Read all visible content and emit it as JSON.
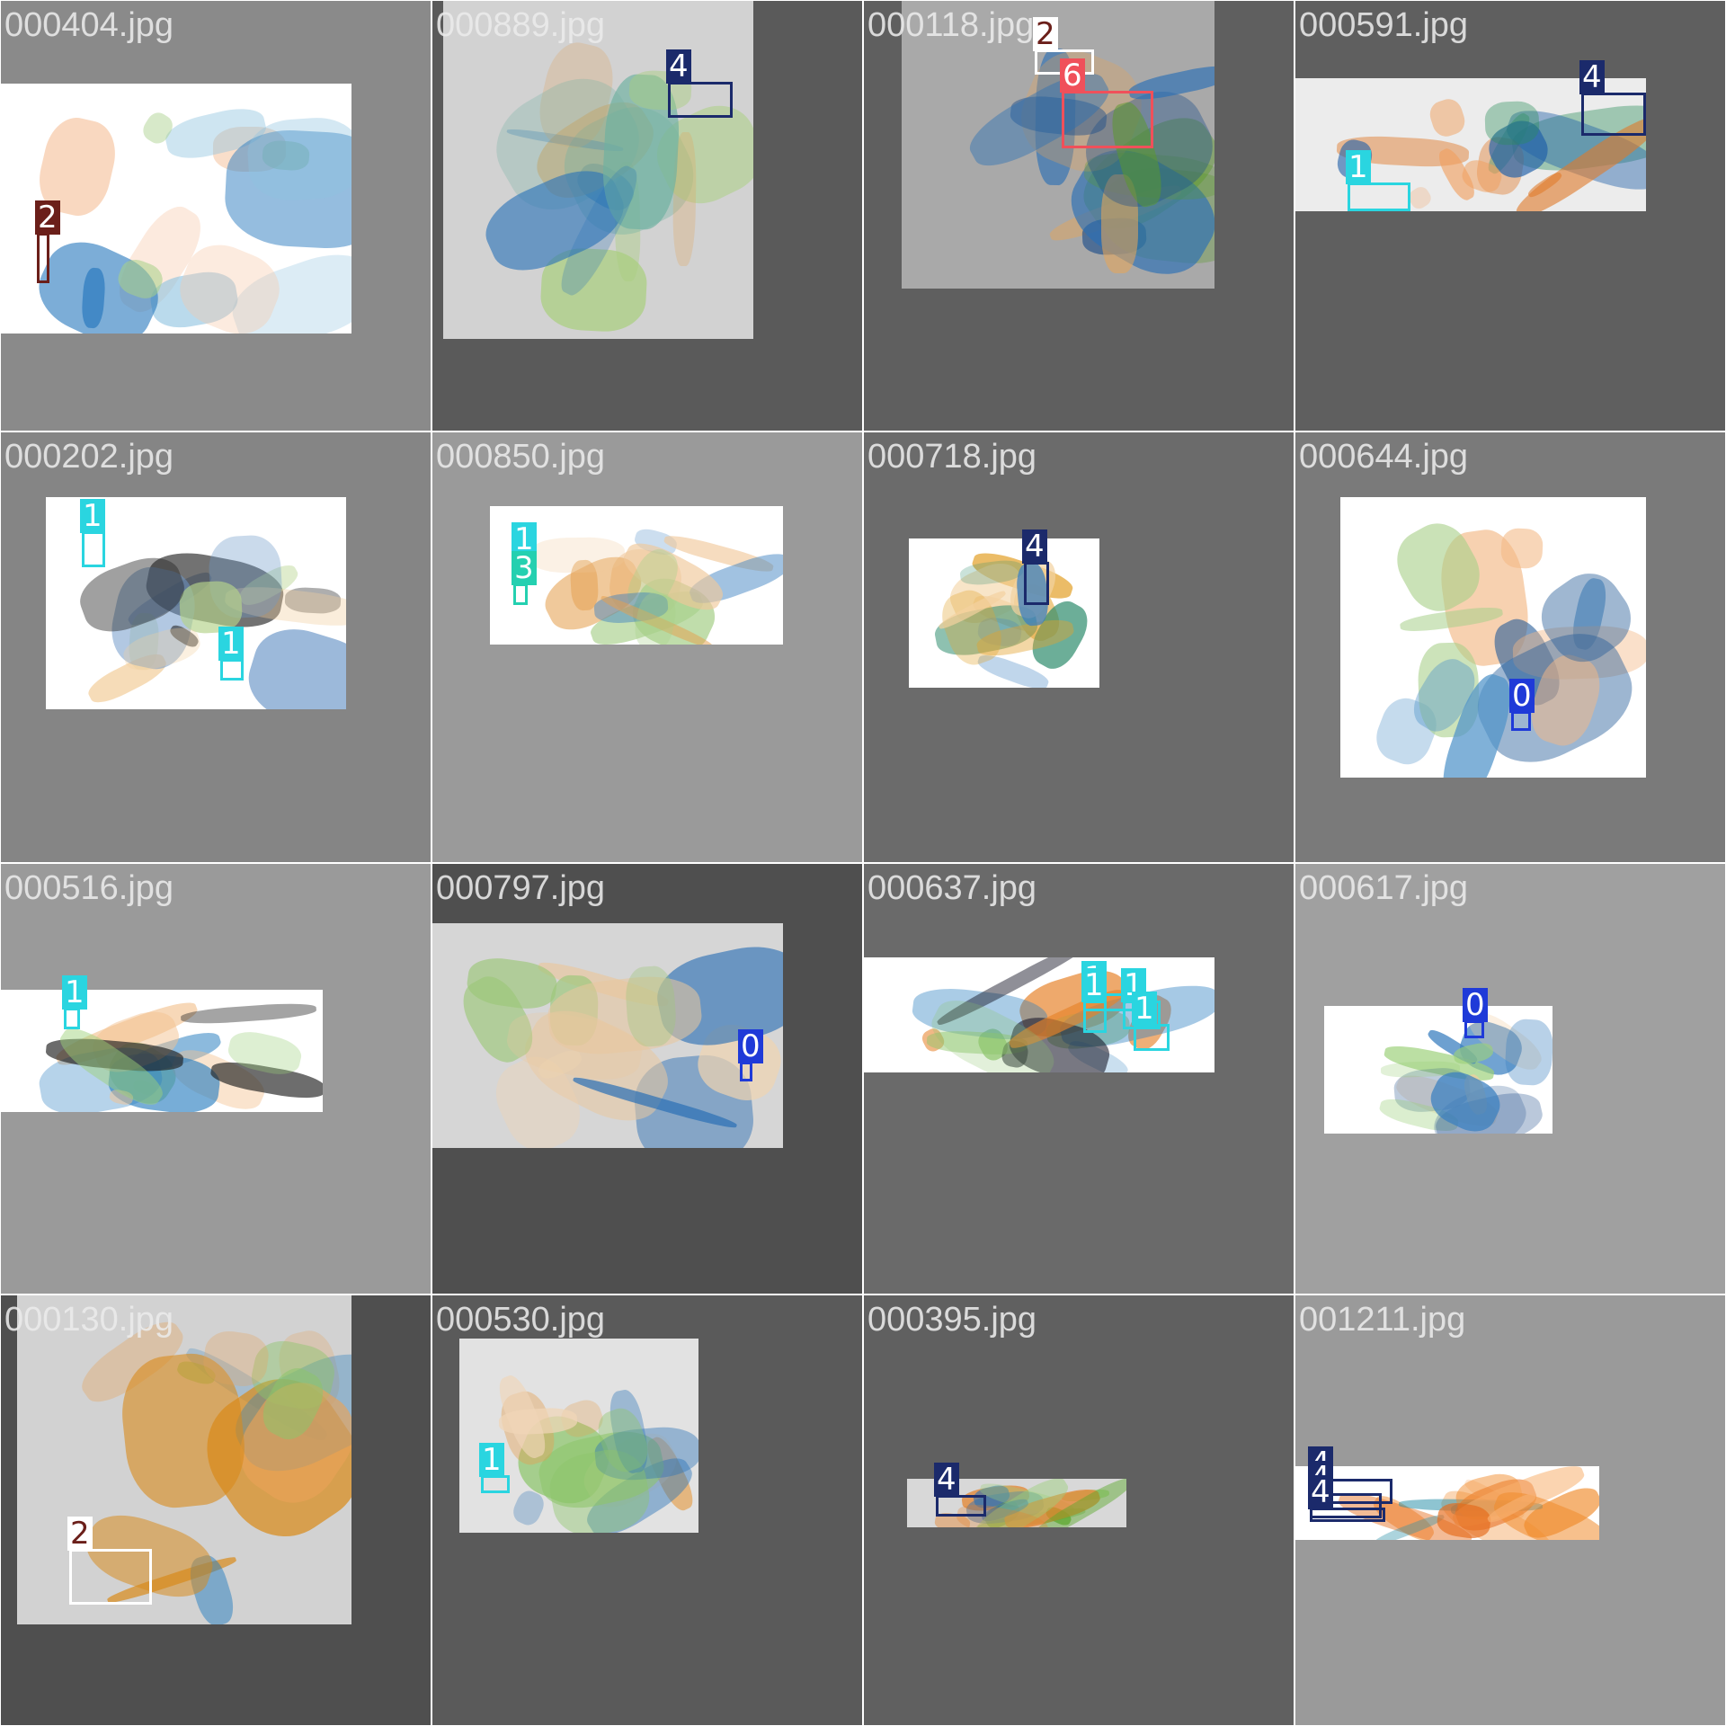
{
  "grid": {
    "tiles": [
      {
        "title": "000404.jpg",
        "bg": "#8a8a8a",
        "scan_bg": "#ffffff",
        "palette": [
          "#f6c9a8",
          "#8fc3e0",
          "#2b7bbf",
          "#a8d08a"
        ],
        "boxes": [
          {
            "label": "2",
            "color": "#6b1f1a",
            "text_color": "#ffffff"
          }
        ]
      },
      {
        "title": "000889.jpg",
        "bg": "#5a5a5a",
        "scan_bg": "#d2d2d2",
        "palette": [
          "#a9cf7e",
          "#2a73b8",
          "#e0a45c",
          "#6fb1a0"
        ],
        "boxes": [
          {
            "label": "4",
            "color": "#1b2a6b",
            "text_color": "#ffffff"
          }
        ]
      },
      {
        "title": "000118.jpg",
        "bg": "#5f5f5f",
        "scan_bg": "#a9a9a9",
        "palette": [
          "#5a9a2a",
          "#2a6fb5",
          "#e5a65a",
          "#1f4f8a"
        ],
        "boxes": [
          {
            "label": "2",
            "color": "#ffffff",
            "text_color": "#6b1f1a"
          },
          {
            "label": "6",
            "color": "#f0505a",
            "text_color": "#ffffff"
          }
        ]
      },
      {
        "title": "000591.jpg",
        "bg": "#5f5f5f",
        "scan_bg": "#ececec",
        "palette": [
          "#e07a2a",
          "#f0a060",
          "#2a8f5a",
          "#1f5fa8"
        ],
        "boxes": [
          {
            "label": "1",
            "color": "#2ad5e0",
            "text_color": "#ffffff"
          },
          {
            "label": "4",
            "color": "#1b2a6b",
            "text_color": "#ffffff"
          }
        ]
      },
      {
        "title": "000202.jpg",
        "bg": "#858585",
        "scan_bg": "#ffffff",
        "palette": [
          "#6d98c8",
          "#222222",
          "#b5d38a",
          "#f2cf9e"
        ],
        "boxes": [
          {
            "label": "1",
            "color": "#2ad5e0",
            "text_color": "#ffffff"
          },
          {
            "label": "1",
            "color": "#2ad5e0",
            "text_color": "#ffffff"
          }
        ]
      },
      {
        "title": "000850.jpg",
        "bg": "#9a9a9a",
        "scan_bg": "#ffffff",
        "palette": [
          "#f0c79a",
          "#a8d08a",
          "#3a7fc0",
          "#e5a050"
        ],
        "boxes": [
          {
            "label": "1",
            "color": "#2ad5e0",
            "text_color": "#ffffff"
          },
          {
            "label": "3",
            "color": "#24d0b0",
            "text_color": "#ffffff"
          }
        ]
      },
      {
        "title": "000718.jpg",
        "bg": "#6b6b6b",
        "scan_bg": "#ffffff",
        "palette": [
          "#e3a32f",
          "#f3d2a0",
          "#2a8a6a",
          "#3a7fc0"
        ],
        "boxes": [
          {
            "label": "4",
            "color": "#1b2a6b",
            "text_color": "#ffffff"
          }
        ]
      },
      {
        "title": "000644.jpg",
        "bg": "#7a7a7a",
        "scan_bg": "#ffffff",
        "palette": [
          "#4f93c9",
          "#f3b987",
          "#a8d08a",
          "#2a5f9a"
        ],
        "boxes": [
          {
            "label": "0",
            "color": "#1f3ad8",
            "text_color": "#ffffff"
          }
        ]
      },
      {
        "title": "000516.jpg",
        "bg": "#9a9a9a",
        "scan_bg": "#ffffff",
        "palette": [
          "#f3c28f",
          "#9cd07a",
          "#2a7fc0",
          "#222222"
        ],
        "boxes": [
          {
            "label": "1",
            "color": "#2ad5e0",
            "text_color": "#ffffff"
          }
        ]
      },
      {
        "title": "000797.jpg",
        "bg": "#4f4f4f",
        "scan_bg": "#d6d6d6",
        "palette": [
          "#e9c79e",
          "#9cc77a",
          "#2a6fb5",
          "#f0d4b0"
        ],
        "boxes": [
          {
            "label": "0",
            "color": "#1f3ad8",
            "text_color": "#ffffff"
          }
        ]
      },
      {
        "title": "000637.jpg",
        "bg": "#6a6a6a",
        "scan_bg": "#ffffff",
        "palette": [
          "#e6822a",
          "#8cc56a",
          "#2a7fc0",
          "#1a1a2a"
        ],
        "boxes": [
          {
            "label": "1",
            "color": "#2ad5e0",
            "text_color": "#ffffff"
          },
          {
            "label": "1",
            "color": "#2ad5e0",
            "text_color": "#ffffff"
          },
          {
            "label": "1",
            "color": "#2ad5e0",
            "text_color": "#ffffff"
          },
          {
            "label": "1",
            "color": "#2ad5e0",
            "text_color": "#ffffff"
          }
        ]
      },
      {
        "title": "000617.jpg",
        "bg": "#a0a0a0",
        "scan_bg": "#ffffff",
        "palette": [
          "#3a7fc0",
          "#9cd07a",
          "#f3cfa0",
          "#1f4f8a"
        ],
        "boxes": [
          {
            "label": "0",
            "color": "#1f3ad8",
            "text_color": "#ffffff"
          }
        ]
      },
      {
        "title": "000130.jpg",
        "bg": "#4f4f4f",
        "scan_bg": "#d2d2d2",
        "palette": [
          "#e9a258",
          "#d88a1a",
          "#2a7fc0",
          "#8cc56a"
        ],
        "boxes": [
          {
            "label": "2",
            "color": "#ffffff",
            "text_color": "#6b1f1a"
          }
        ]
      },
      {
        "title": "000530.jpg",
        "bg": "#5a5a5a",
        "scan_bg": "#e2e2e2",
        "palette": [
          "#2a73b8",
          "#8cc56a",
          "#e5a050",
          "#f0d6b8"
        ],
        "boxes": [
          {
            "label": "1",
            "color": "#2ad5e0",
            "text_color": "#ffffff"
          }
        ]
      },
      {
        "title": "000395.jpg",
        "bg": "#606060",
        "scan_bg": "#d8d8d8",
        "palette": [
          "#5aa82a",
          "#e5822a",
          "#2a6fb5",
          "#9cd07a"
        ],
        "boxes": [
          {
            "label": "4",
            "color": "#1b2a6b",
            "text_color": "#ffffff"
          }
        ]
      },
      {
        "title": "001211.jpg",
        "bg": "#9a9a9a",
        "scan_bg": "#ffffff",
        "palette": [
          "#f08a2a",
          "#f7b070",
          "#2a8fa8",
          "#e56a1a"
        ],
        "boxes": [
          {
            "label": "4",
            "color": "#1b2a6b",
            "text_color": "#ffffff"
          },
          {
            "label": "4",
            "color": "#1b2a6b",
            "text_color": "#ffffff"
          },
          {
            "label": "4",
            "color": "#1b2a6b",
            "text_color": "#ffffff"
          }
        ]
      }
    ]
  }
}
